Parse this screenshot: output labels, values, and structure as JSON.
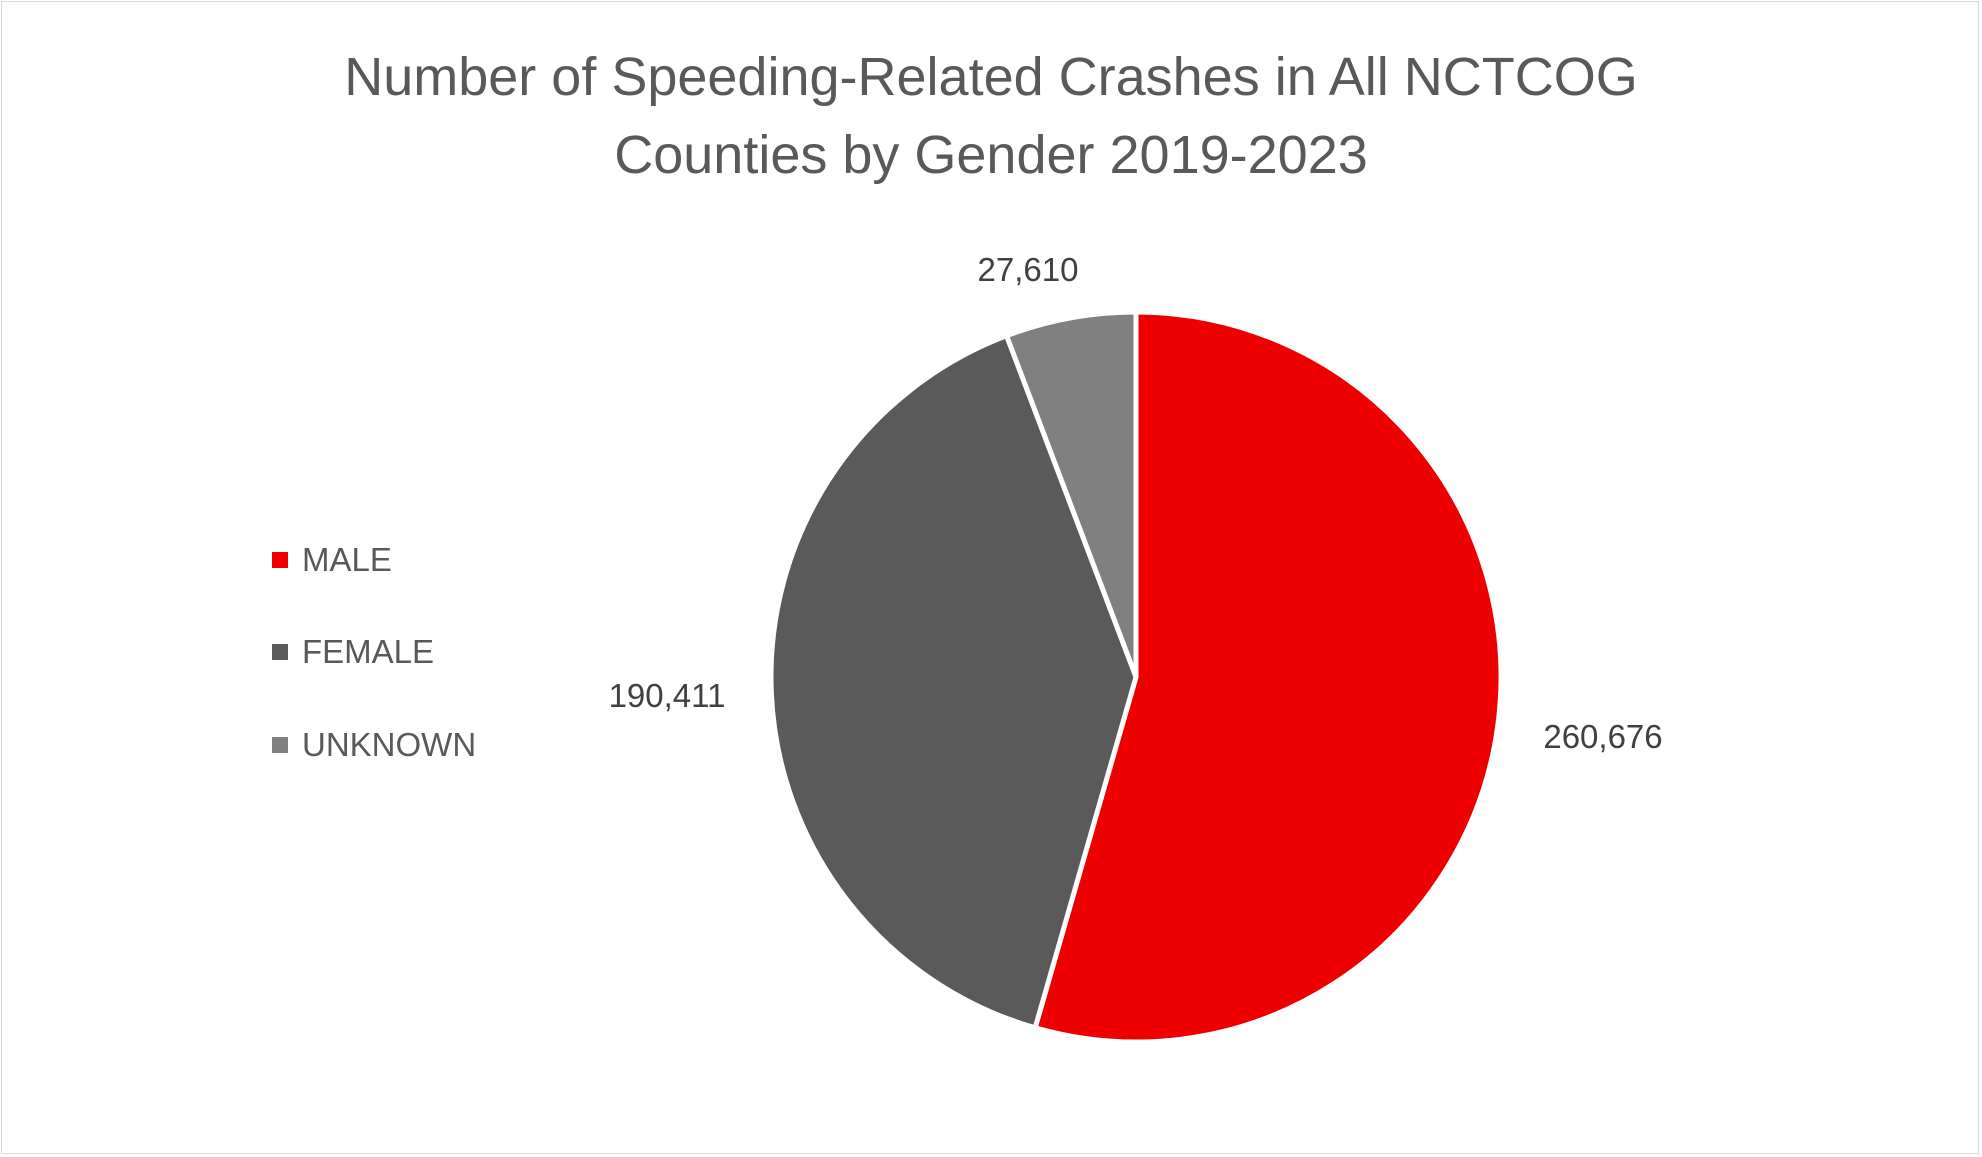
{
  "chart_data": {
    "type": "pie",
    "title_lines": [
      "Number of Speeding-Related Crashes in All NCTCOG",
      "Counties by Gender 2019-2023"
    ],
    "categories": [
      "MALE",
      "FEMALE",
      "UNKNOWN"
    ],
    "values": [
      260676,
      190411,
      27610
    ],
    "value_labels": [
      "260,676",
      "190,411",
      "27,610"
    ],
    "colors": [
      "#EE0000",
      "#5A5A5A",
      "#808080"
    ],
    "start_angle_deg": 0,
    "direction": "clockwise",
    "legend_placement": "left"
  }
}
